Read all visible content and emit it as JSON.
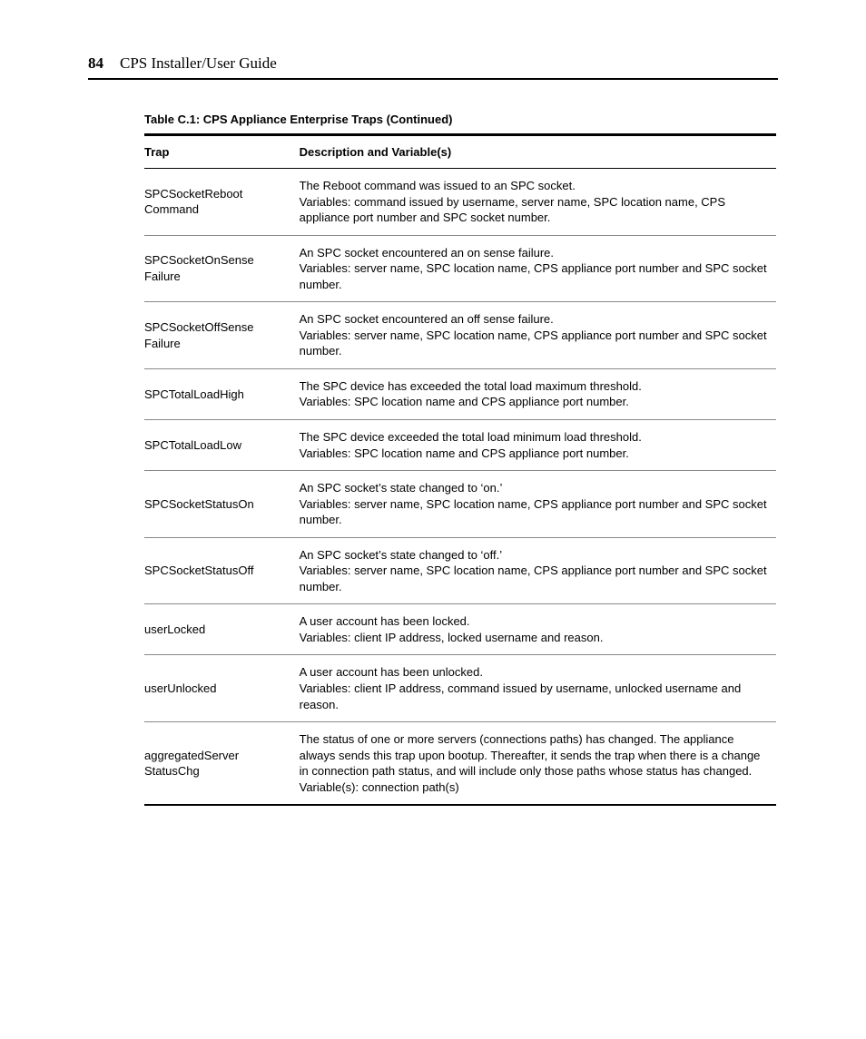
{
  "header": {
    "page_number": "84",
    "doc_title": "CPS Installer/User Guide"
  },
  "table": {
    "caption": "Table C.1: CPS Appliance Enterprise Traps (Continued)",
    "columns": [
      "Trap",
      "Description and Variable(s)"
    ],
    "rows": [
      {
        "trap": "SPCSocketReboot Command",
        "desc": "The Reboot command was issued to an SPC socket.\nVariables: command issued by username, server name, SPC location name, CPS appliance port number and SPC socket number."
      },
      {
        "trap": "SPCSocketOnSense Failure",
        "desc": "An SPC socket encountered an on sense failure.\nVariables: server name, SPC location name, CPS appliance port number and SPC socket number."
      },
      {
        "trap": "SPCSocketOffSense Failure",
        "desc": "An SPC socket encountered an off sense failure.\nVariables: server name, SPC location name, CPS appliance port number and SPC socket number."
      },
      {
        "trap": "SPCTotalLoadHigh",
        "desc": "The SPC device has exceeded the total load maximum threshold.\nVariables: SPC location name and CPS appliance port number."
      },
      {
        "trap": "SPCTotalLoadLow",
        "desc": "The SPC device exceeded the total load minimum load threshold.\nVariables: SPC location name and CPS appliance port number."
      },
      {
        "trap": "SPCSocketStatusOn",
        "desc": "An SPC socket’s state changed to ‘on.’\nVariables: server name, SPC location name, CPS appliance port number and SPC socket number."
      },
      {
        "trap": "SPCSocketStatusOff",
        "desc": "An SPC socket’s state changed to ‘off.’\nVariables: server name, SPC location name, CPS appliance port number and SPC socket number."
      },
      {
        "trap": "userLocked",
        "desc": "A user account has been locked.\nVariables: client IP address, locked username and reason."
      },
      {
        "trap": "userUnlocked",
        "desc": "A user account has been unlocked.\nVariables: client IP address, command issued by username, unlocked username and reason."
      },
      {
        "trap": "aggregatedServer StatusChg",
        "desc": "The status of one or more servers (connections paths) has changed. The appliance always sends this trap upon bootup. Thereafter, it sends the trap when there is a change in connection path status, and will include only those paths whose status has changed.\nVariable(s): connection path(s)"
      }
    ]
  }
}
